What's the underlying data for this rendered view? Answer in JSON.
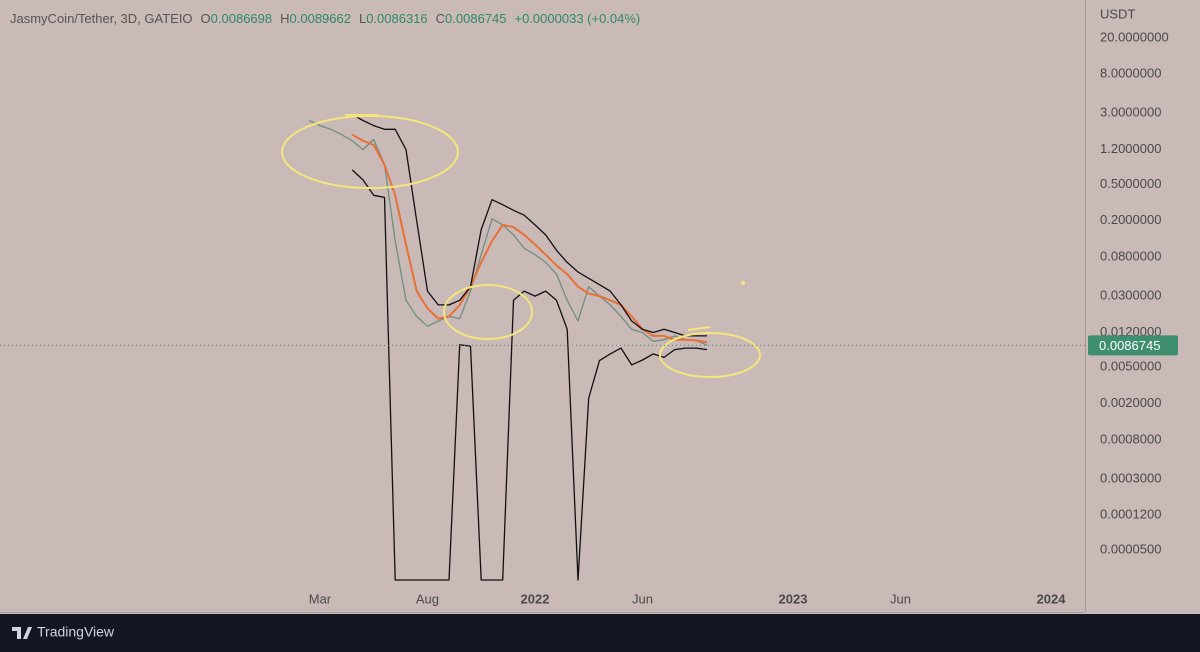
{
  "chart_data": {
    "type": "line",
    "title": "JasmyCoin/Tether, 3D, GATEIO",
    "ohlc": [
      {
        "label": "O",
        "value": 0.0086698
      },
      {
        "label": "H",
        "value": 0.0089662
      },
      {
        "label": "L",
        "value": 0.0086316
      },
      {
        "label": "C",
        "value": 0.0086745
      }
    ],
    "change": "+0.0000033 (+0.04%)",
    "y_unit": "USDT",
    "log_scale": true,
    "last_price": 0.0086745,
    "last_price_color": "#3d8f70",
    "x": [
      1.5,
      2,
      2.5,
      3,
      3.5,
      4,
      4.5,
      5,
      5.5,
      6,
      6.5,
      7,
      7.5,
      8,
      8.5,
      9,
      9.5,
      10,
      10.5,
      11,
      11.5,
      12,
      12.5,
      13,
      13.5,
      14,
      14.5,
      15,
      15.5,
      16,
      16.5,
      17,
      17.5,
      18,
      18.5,
      19,
      19.5,
      20
    ],
    "series": [
      {
        "color": "#6f8f7f",
        "values": [
          2.5,
          2.2,
          2.0,
          1.75,
          1.5,
          1.2,
          1.55,
          0.82,
          0.12,
          0.027,
          0.018,
          0.014,
          0.016,
          0.018,
          0.017,
          0.034,
          0.085,
          0.21,
          0.18,
          0.14,
          0.1,
          0.085,
          0.07,
          0.052,
          0.027,
          0.016,
          0.038,
          0.03,
          0.024,
          0.018,
          0.013,
          0.012,
          0.0096,
          0.01,
          0.011,
          0.01,
          0.0098,
          0.0087
        ]
      },
      {
        "color": "#ea7034",
        "values": [
          null,
          null,
          null,
          null,
          1.75,
          1.5,
          1.35,
          0.82,
          0.38,
          0.11,
          0.034,
          0.022,
          0.017,
          0.018,
          0.024,
          0.038,
          0.07,
          0.12,
          0.18,
          0.17,
          0.14,
          0.11,
          0.085,
          0.065,
          0.052,
          0.038,
          0.032,
          0.03,
          0.027,
          0.024,
          0.018,
          0.013,
          0.011,
          0.011,
          0.01,
          0.01,
          0.0098,
          0.0094
        ]
      },
      {
        "color": "#111111",
        "values": [
          null,
          null,
          null,
          null,
          2.9,
          2.5,
          2.2,
          2.0,
          2.0,
          1.2,
          0.2,
          0.034,
          0.024,
          0.024,
          0.027,
          0.038,
          0.16,
          0.34,
          0.3,
          0.26,
          0.23,
          0.18,
          0.14,
          0.095,
          0.07,
          0.055,
          0.047,
          0.04,
          0.034,
          0.024,
          0.016,
          0.013,
          0.012,
          0.013,
          0.012,
          0.011,
          0.011,
          0.011
        ]
      },
      {
        "color": "#111111",
        "values": [
          null,
          null,
          null,
          null,
          0.72,
          0.56,
          0.38,
          0.36,
          2.35e-05,
          2.35e-05,
          2.35e-05,
          2.35e-05,
          2.35e-05,
          2.35e-05,
          0.0088,
          0.0085,
          2.35e-05,
          2.35e-05,
          2.35e-05,
          0.027,
          0.034,
          0.03,
          0.034,
          0.027,
          0.013,
          2.35e-05,
          0.0023,
          0.0059,
          0.007,
          0.0081,
          0.0053,
          0.006,
          0.007,
          0.0064,
          0.0078,
          0.0081,
          0.0081,
          0.0078
        ]
      }
    ],
    "xlim": [
      -12.88,
      37.58
    ],
    "xticks": [
      {
        "value": 2,
        "label": "Mar"
      },
      {
        "value": 7,
        "label": "Aug"
      },
      {
        "value": 12,
        "label": "2022"
      },
      {
        "value": 17,
        "label": "Jun"
      },
      {
        "value": 24,
        "label": "2023"
      },
      {
        "value": 29,
        "label": "Jun"
      },
      {
        "value": 36,
        "label": "2024"
      }
    ],
    "ylim": [
      1.05e-05,
      52
    ],
    "yticks": [
      {
        "value": 20,
        "label": "20.0000000"
      },
      {
        "value": 8,
        "label": "8.0000000"
      },
      {
        "value": 3,
        "label": "3.0000000"
      },
      {
        "value": 1.2,
        "label": "1.2000000"
      },
      {
        "value": 0.5,
        "label": "0.5000000"
      },
      {
        "value": 0.2,
        "label": "0.2000000"
      },
      {
        "value": 0.08,
        "label": "0.0800000"
      },
      {
        "value": 0.03,
        "label": "0.0300000"
      },
      {
        "value": 0.012,
        "label": "0.0120000"
      },
      {
        "value": 0.005,
        "label": "0.0050000"
      },
      {
        "value": 0.002,
        "label": "0.0020000"
      },
      {
        "value": 0.0008,
        "label": "0.0008000"
      },
      {
        "value": 0.0003,
        "label": "0.0003000"
      },
      {
        "value": 0.00012,
        "label": "0.0001200"
      },
      {
        "value": 5e-05,
        "label": "0.0000500"
      }
    ]
  },
  "footer": "TradingView"
}
